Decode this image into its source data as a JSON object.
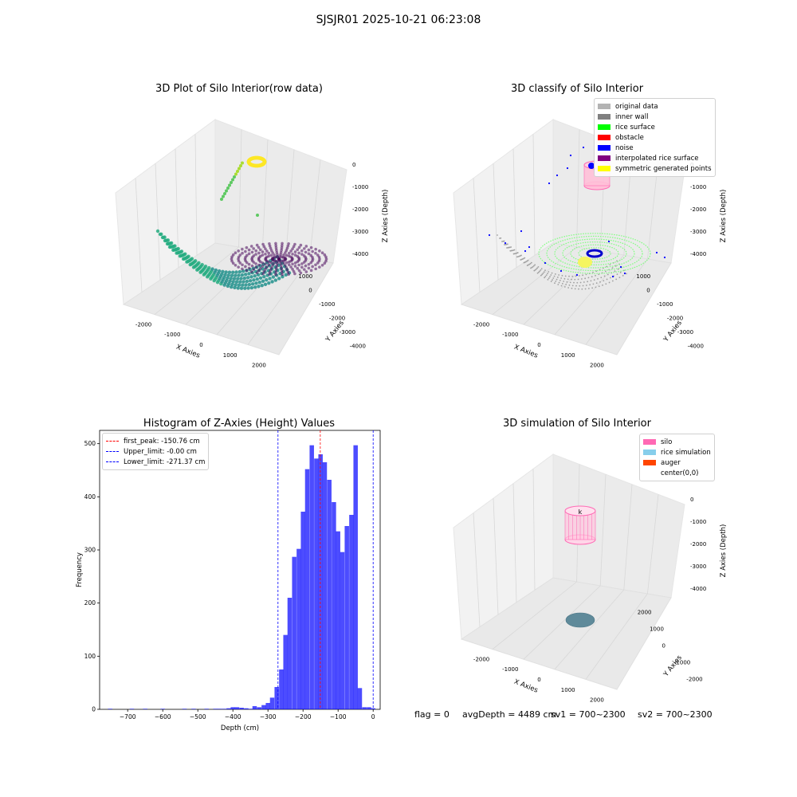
{
  "suptitle": "SJSJR01 2025-10-21 06:23:08",
  "panels": {
    "raw": {
      "title": "3D Plot of Silo Interior(row data)",
      "xlabel": "X Axies",
      "ylabel": "Y Axies",
      "zlabel": "Z Axies (Depth)",
      "xticks": [
        "-2000",
        "-1000",
        "0",
        "1000",
        "2000"
      ],
      "yticks": [
        "1000",
        "0",
        "-1000",
        "-2000",
        "-3000",
        "-4000"
      ],
      "zticks": [
        "0",
        "-1000",
        "-2000",
        "-3000",
        "-4000"
      ],
      "colormap": "viridis"
    },
    "classify": {
      "title": "3D classify of Silo Interior",
      "xlabel": "X Axies",
      "ylabel": "Y Axies",
      "zlabel": "Z Axies (Depth)",
      "xticks": [
        "-2000",
        "-1000",
        "0",
        "1000",
        "2000"
      ],
      "yticks": [
        "1000",
        "0",
        "-1000",
        "-2000",
        "-3000",
        "-4000"
      ],
      "zticks": [
        "0",
        "-1000",
        "-2000",
        "-3000",
        "-4000"
      ],
      "legend": [
        {
          "label": "original data",
          "color": "#b3b3b3"
        },
        {
          "label": "inner wall",
          "color": "#808080"
        },
        {
          "label": "rice surface",
          "color": "#00ff00"
        },
        {
          "label": "obstacle",
          "color": "#ff0000"
        },
        {
          "label": "noise",
          "color": "#0000ff"
        },
        {
          "label": "interpolated rice surface",
          "color": "#800080"
        },
        {
          "label": "symmetric generated points",
          "color": "#ffff00"
        }
      ]
    },
    "simulation": {
      "title": "3D simulation of Silo Interior",
      "xlabel": "X Axies",
      "ylabel": "Y Axies",
      "zlabel": "Z Axies (Depth)",
      "xticks": [
        "-2000",
        "-1000",
        "0",
        "1000",
        "2000"
      ],
      "yticks": [
        "2000",
        "1000",
        "0",
        "-1000",
        "-2000"
      ],
      "zticks": [
        "0",
        "-1000",
        "-2000",
        "-3000",
        "-4000"
      ],
      "legend": [
        {
          "label": "silo",
          "color": "#ff69b4"
        },
        {
          "label": "rice simulation",
          "color": "#87ceeb"
        },
        {
          "label": "auger",
          "color": "#ff4500"
        },
        {
          "label": "center(0,0)",
          "color": "#ffffff"
        }
      ]
    }
  },
  "footer": {
    "flag": "flag = 0",
    "avg_depth": "avgDepth = 4489 cm",
    "sv1": "sv1 = 700~2300",
    "sv2": "sv2 = 700~2300"
  },
  "chart_data": [
    {
      "type": "bar",
      "title": "Histogram of Z-Axies (Height) Values",
      "xlabel": "Depth (cm)",
      "ylabel": "Frequency",
      "xlim": [
        -780,
        20
      ],
      "ylim": [
        0,
        525
      ],
      "xticks": [
        -700,
        -600,
        -500,
        -400,
        -300,
        -200,
        -100,
        0
      ],
      "yticks": [
        0,
        100,
        200,
        300,
        400,
        500
      ],
      "bar_color": "#0000ff",
      "bin_width": 12.5,
      "bins": [
        {
          "x": -750,
          "count": 1
        },
        {
          "x": -688,
          "count": 1
        },
        {
          "x": -650,
          "count": 1
        },
        {
          "x": -600,
          "count": 1
        },
        {
          "x": -538,
          "count": 1
        },
        {
          "x": -512,
          "count": 1
        },
        {
          "x": -475,
          "count": 1
        },
        {
          "x": -450,
          "count": 1
        },
        {
          "x": -438,
          "count": 1
        },
        {
          "x": -425,
          "count": 1
        },
        {
          "x": -412,
          "count": 2
        },
        {
          "x": -400,
          "count": 4
        },
        {
          "x": -388,
          "count": 4
        },
        {
          "x": -375,
          "count": 3
        },
        {
          "x": -362,
          "count": 2
        },
        {
          "x": -350,
          "count": 1
        },
        {
          "x": -338,
          "count": 6
        },
        {
          "x": -325,
          "count": 4
        },
        {
          "x": -312,
          "count": 8
        },
        {
          "x": -300,
          "count": 12
        },
        {
          "x": -288,
          "count": 22
        },
        {
          "x": -275,
          "count": 42
        },
        {
          "x": -262,
          "count": 75
        },
        {
          "x": -250,
          "count": 140
        },
        {
          "x": -238,
          "count": 210
        },
        {
          "x": -225,
          "count": 287
        },
        {
          "x": -212,
          "count": 302
        },
        {
          "x": -200,
          "count": 372
        },
        {
          "x": -188,
          "count": 452
        },
        {
          "x": -175,
          "count": 497
        },
        {
          "x": -162,
          "count": 472
        },
        {
          "x": -150,
          "count": 480
        },
        {
          "x": -138,
          "count": 465
        },
        {
          "x": -125,
          "count": 432
        },
        {
          "x": -112,
          "count": 390
        },
        {
          "x": -100,
          "count": 335
        },
        {
          "x": -88,
          "count": 296
        },
        {
          "x": -75,
          "count": 345
        },
        {
          "x": -62,
          "count": 366
        },
        {
          "x": -50,
          "count": 497
        },
        {
          "x": -38,
          "count": 40
        },
        {
          "x": -25,
          "count": 4
        },
        {
          "x": -12,
          "count": 4
        },
        {
          "x": 0,
          "count": 2
        }
      ],
      "lines": [
        {
          "label": "first_peak: -150.76 cm",
          "x": -150.76,
          "color": "#ff0000"
        },
        {
          "label": "Upper_limit: -0.00 cm",
          "x": 0.0,
          "color": "#0000ff"
        },
        {
          "label": "Lower_limit: -271.37 cm",
          "x": -271.37,
          "color": "#0000ff"
        }
      ]
    }
  ]
}
